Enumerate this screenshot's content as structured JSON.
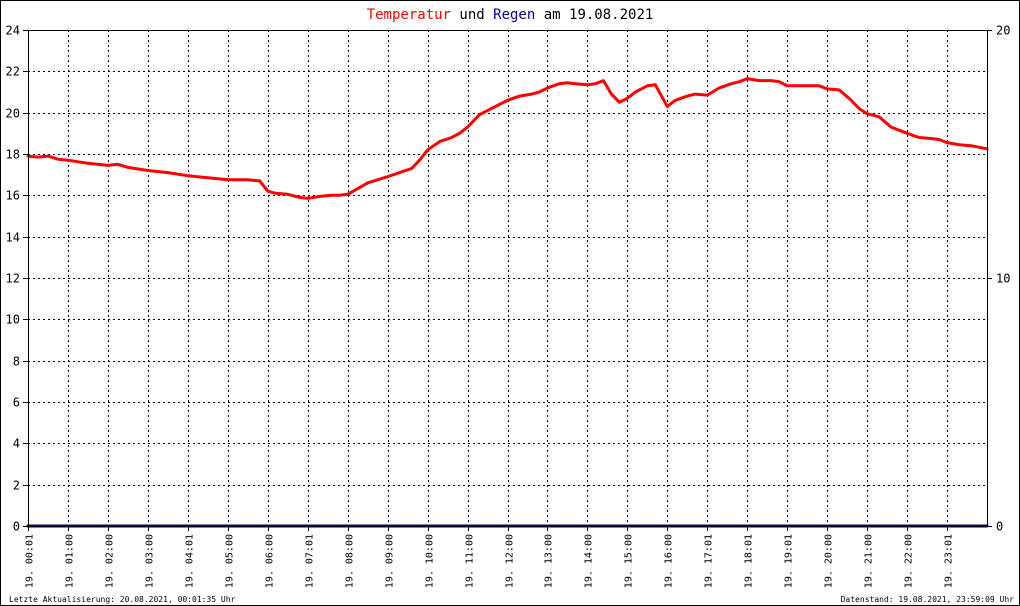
{
  "title": {
    "part1": "Temperatur",
    "part2": " und ",
    "part3": "Regen",
    "part4": " am 19.08.2021"
  },
  "colors": {
    "temperature": "#ff0000",
    "rain": "#00008b",
    "grid": "#000000",
    "title_text": "#000000",
    "background": "#ffffff",
    "frame": "#000000"
  },
  "footer": {
    "left": "Letzte Aktualisierung: 20.08.2021, 00:01:35 Uhr",
    "right": "Datenstand: 19.08.2021, 23:59:09 Uhr"
  },
  "chart_data": {
    "type": "line",
    "title": "Temperatur und Regen am 19.08.2021",
    "xlabel": "",
    "ylabel": "",
    "xlim": [
      0,
      24
    ],
    "ylim": [
      0,
      24
    ],
    "y2lim": [
      0,
      20
    ],
    "grid": true,
    "y_ticks": [
      0,
      2,
      4,
      6,
      8,
      10,
      12,
      14,
      16,
      18,
      20,
      22,
      24
    ],
    "y2_ticks": [
      0,
      10,
      20
    ],
    "x_tick_positions": [
      0.0,
      1.0,
      2.0,
      3.0,
      4.0,
      5.0,
      6.0,
      7.0,
      8.0,
      9.0,
      10.0,
      11.0,
      12.0,
      13.0,
      14.0,
      15.0,
      16.0,
      17.0,
      18.0,
      19.0,
      20.0,
      21.0,
      22.0,
      23.0
    ],
    "x_tick_labels": [
      "19. 00:01",
      "19. 01:00",
      "19. 02:00",
      "19. 03:00",
      "19. 04:01",
      "19. 05:00",
      "19. 06:00",
      "19. 07:01",
      "19. 08:00",
      "19. 09:00",
      "19. 10:00",
      "19. 11:00",
      "19. 12:00",
      "19. 13:00",
      "19. 14:00",
      "19. 15:00",
      "19. 16:00",
      "19. 17:01",
      "19. 18:01",
      "19. 19:01",
      "19. 20:00",
      "19. 21:00",
      "19. 22:00",
      "19. 23:01"
    ],
    "series": [
      {
        "key": "temperature",
        "axis": "left",
        "color": "#ff0000",
        "x": [
          0.0,
          0.25,
          0.5,
          0.75,
          1.0,
          1.5,
          2.0,
          2.25,
          2.5,
          3.0,
          3.5,
          4.0,
          4.5,
          5.0,
          5.5,
          5.8,
          6.0,
          6.2,
          6.5,
          6.8,
          7.0,
          7.3,
          7.6,
          7.8,
          8.0,
          8.5,
          9.0,
          9.3,
          9.6,
          9.8,
          10.0,
          10.3,
          10.6,
          10.8,
          11.0,
          11.3,
          11.6,
          12.0,
          12.3,
          12.6,
          12.8,
          13.0,
          13.3,
          13.5,
          13.7,
          14.0,
          14.2,
          14.4,
          14.6,
          14.8,
          15.0,
          15.2,
          15.5,
          15.7,
          16.0,
          16.2,
          16.5,
          16.7,
          17.0,
          17.3,
          17.6,
          17.8,
          18.0,
          18.3,
          18.6,
          18.8,
          19.0,
          19.2,
          19.5,
          19.8,
          20.0,
          20.3,
          20.6,
          20.8,
          21.0,
          21.3,
          21.6,
          21.8,
          22.0,
          22.3,
          22.6,
          22.8,
          23.0,
          23.3,
          23.6,
          24.0
        ],
        "y": [
          17.9,
          17.85,
          17.9,
          17.75,
          17.7,
          17.55,
          17.45,
          17.5,
          17.35,
          17.2,
          17.1,
          16.95,
          16.85,
          16.75,
          16.75,
          16.7,
          16.2,
          16.1,
          16.05,
          15.9,
          15.85,
          15.95,
          16.0,
          16.0,
          16.05,
          16.6,
          16.9,
          17.1,
          17.3,
          17.7,
          18.2,
          18.6,
          18.8,
          19.0,
          19.3,
          19.9,
          20.2,
          20.6,
          20.8,
          20.9,
          21.0,
          21.2,
          21.4,
          21.45,
          21.4,
          21.35,
          21.4,
          21.55,
          20.9,
          20.5,
          20.7,
          21.0,
          21.3,
          21.35,
          20.3,
          20.6,
          20.8,
          20.9,
          20.85,
          21.2,
          21.4,
          21.5,
          21.65,
          21.55,
          21.55,
          21.5,
          21.3,
          21.3,
          21.3,
          21.3,
          21.15,
          21.1,
          20.6,
          20.2,
          19.95,
          19.8,
          19.3,
          19.15,
          19.0,
          18.8,
          18.75,
          18.7,
          18.55,
          18.45,
          18.4,
          18.25
        ]
      },
      {
        "key": "rain",
        "axis": "right",
        "color": "#00008b",
        "x": [
          0,
          24
        ],
        "y": [
          0,
          0
        ]
      }
    ]
  }
}
